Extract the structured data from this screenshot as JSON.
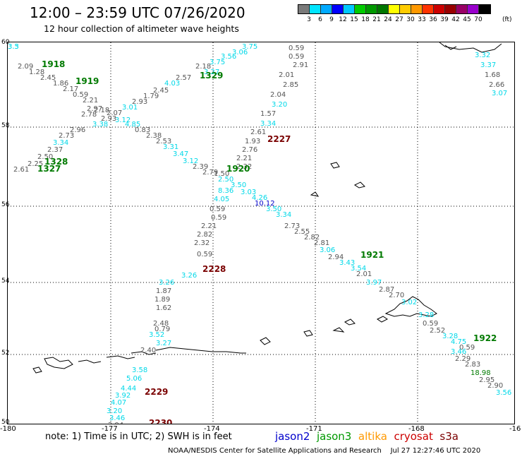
{
  "header": {
    "title": "12:00 – 23:59 UTC 07/26/2020",
    "subtitle": "12 hour collection of altimeter wave heights"
  },
  "legend": {
    "colors": [
      "#7a7a7a",
      "#00e5ff",
      "#00aaff",
      "#0000ff",
      "#00c8ff",
      "#00cc00",
      "#009900",
      "#007700",
      "#ffff00",
      "#ffcc00",
      "#ff9900",
      "#ff3300",
      "#cc0000",
      "#990000",
      "#990066",
      "#9900cc",
      "#000000"
    ],
    "ticks": [
      "3",
      "6",
      "9",
      "12",
      "15",
      "18",
      "21",
      "24",
      "27",
      "30",
      "33",
      "36",
      "39",
      "42",
      "45",
      "70"
    ],
    "units": "(ft)"
  },
  "axes": {
    "lat_labels": [
      "60",
      "58",
      "56",
      "54",
      "52",
      "50"
    ],
    "lon_labels": [
      "-180",
      "-177",
      "-174",
      "-171",
      "-168",
      "-16"
    ]
  },
  "colors": {
    "gray": "#555555",
    "cyan": "#00d8e8",
    "green": "#007a00",
    "darkred": "#7a0000",
    "blue": "#0000cc"
  },
  "map": {
    "labels": [
      {
        "t": "0.59",
        "c": "gray"
      },
      {
        "t": "0.59",
        "c": "gray"
      },
      {
        "t": "2.91",
        "c": "gray"
      },
      {
        "t": "2.01",
        "c": "gray"
      },
      {
        "t": "2.85",
        "c": "gray"
      },
      {
        "t": "2.04",
        "c": "gray"
      },
      {
        "t": "3.20",
        "c": "cyan"
      },
      {
        "t": "1.57",
        "c": "gray"
      },
      {
        "t": "3.34",
        "c": "cyan"
      },
      {
        "t": "2.61",
        "c": "gray"
      },
      {
        "t": "1.93",
        "c": "gray"
      },
      {
        "t": "2.76",
        "c": "gray"
      },
      {
        "t": "2.21",
        "c": "gray"
      },
      {
        "t": "2.32",
        "c": "gray"
      },
      {
        "t": "3.75",
        "c": "cyan"
      },
      {
        "t": "3.06",
        "c": "cyan"
      },
      {
        "t": "3.56",
        "c": "cyan"
      },
      {
        "t": "3.75",
        "c": "cyan"
      },
      {
        "t": "2.18",
        "c": "gray"
      },
      {
        "t": "3.27",
        "c": "cyan"
      },
      {
        "t": "2.57",
        "c": "gray"
      },
      {
        "t": "4.03",
        "c": "cyan"
      },
      {
        "t": "2.45",
        "c": "gray"
      },
      {
        "t": "1.79",
        "c": "gray"
      },
      {
        "t": "2.93",
        "c": "gray"
      },
      {
        "t": "3.01",
        "c": "cyan"
      },
      {
        "t": "2.18",
        "c": "gray"
      },
      {
        "t": "2.07",
        "c": "gray"
      },
      {
        "t": "2.93",
        "c": "gray"
      },
      {
        "t": "3.12",
        "c": "cyan"
      },
      {
        "t": "3.38",
        "c": "cyan"
      },
      {
        "t": "2.09",
        "c": "gray"
      },
      {
        "t": "1.28",
        "c": "gray"
      },
      {
        "t": "2.45",
        "c": "gray"
      },
      {
        "t": "1.86",
        "c": "gray"
      },
      {
        "t": "2.17",
        "c": "gray"
      },
      {
        "t": "0.59",
        "c": "gray"
      },
      {
        "t": "2.21",
        "c": "gray"
      },
      {
        "t": "2.97",
        "c": "gray"
      },
      {
        "t": "2.78",
        "c": "gray"
      },
      {
        "t": "2.96",
        "c": "gray"
      },
      {
        "t": "2.73",
        "c": "gray"
      },
      {
        "t": "3.34",
        "c": "cyan"
      },
      {
        "t": "2.37",
        "c": "gray"
      },
      {
        "t": "2.50",
        "c": "gray"
      },
      {
        "t": "2.25",
        "c": "gray"
      },
      {
        "t": "2.61",
        "c": "gray"
      },
      {
        "t": "4.85",
        "c": "cyan"
      },
      {
        "t": "0.83",
        "c": "gray"
      },
      {
        "t": "2.38",
        "c": "gray"
      },
      {
        "t": "2.53",
        "c": "gray"
      },
      {
        "t": "3.31",
        "c": "cyan"
      },
      {
        "t": "3.47",
        "c": "cyan"
      },
      {
        "t": "3.12",
        "c": "cyan"
      },
      {
        "t": "2.39",
        "c": "gray"
      },
      {
        "t": "2.79",
        "c": "gray"
      },
      {
        "t": "1.50",
        "c": "gray"
      },
      {
        "t": "2.50",
        "c": "cyan"
      },
      {
        "t": "3.50",
        "c": "cyan"
      },
      {
        "t": "8.36",
        "c": "cyan"
      },
      {
        "t": "3.03",
        "c": "cyan"
      },
      {
        "t": "4.26",
        "c": "cyan"
      },
      {
        "t": "4.05",
        "c": "cyan"
      },
      {
        "t": "10.12",
        "c": "blue"
      },
      {
        "t": "0.59",
        "c": "gray"
      },
      {
        "t": "3.50",
        "c": "cyan"
      },
      {
        "t": "0.59",
        "c": "gray"
      },
      {
        "t": "3.34",
        "c": "cyan"
      },
      {
        "t": "2.73",
        "c": "gray"
      },
      {
        "t": "2.21",
        "c": "gray"
      },
      {
        "t": "2.55",
        "c": "gray"
      },
      {
        "t": "2.82",
        "c": "gray"
      },
      {
        "t": "2.82",
        "c": "gray"
      },
      {
        "t": "2.81",
        "c": "gray"
      },
      {
        "t": "2.32",
        "c": "gray"
      },
      {
        "t": "3.06",
        "c": "cyan"
      },
      {
        "t": "0.59",
        "c": "gray"
      },
      {
        "t": "2.94",
        "c": "gray"
      },
      {
        "t": "3.43",
        "c": "cyan"
      },
      {
        "t": "3.26",
        "c": "cyan"
      },
      {
        "t": "3.54",
        "c": "cyan"
      },
      {
        "t": "2.01",
        "c": "gray"
      },
      {
        "t": "3.97",
        "c": "cyan"
      },
      {
        "t": "3.26",
        "c": "cyan"
      },
      {
        "t": "2.87",
        "c": "gray"
      },
      {
        "t": "1.87",
        "c": "gray"
      },
      {
        "t": "2.70",
        "c": "gray"
      },
      {
        "t": "1.89",
        "c": "gray"
      },
      {
        "t": "3.02",
        "c": "cyan"
      },
      {
        "t": "1.62",
        "c": "gray"
      },
      {
        "t": "2.48",
        "c": "gray"
      },
      {
        "t": "0.79",
        "c": "gray"
      },
      {
        "t": "3.28",
        "c": "cyan"
      },
      {
        "t": "0.59",
        "c": "gray"
      },
      {
        "t": "2.52",
        "c": "gray"
      },
      {
        "t": "3.28",
        "c": "cyan"
      },
      {
        "t": "3.52",
        "c": "cyan"
      },
      {
        "t": "4.75",
        "c": "cyan"
      },
      {
        "t": "0.59",
        "c": "gray"
      },
      {
        "t": "3.27",
        "c": "cyan"
      },
      {
        "t": "3.46",
        "c": "cyan"
      },
      {
        "t": "2.29",
        "c": "gray"
      },
      {
        "t": "2.40",
        "c": "gray"
      },
      {
        "t": "2.83",
        "c": "gray"
      },
      {
        "t": "18.98",
        "c": "green"
      },
      {
        "t": "3.58",
        "c": "cyan"
      },
      {
        "t": "2.95",
        "c": "gray"
      },
      {
        "t": "5.06",
        "c": "cyan"
      },
      {
        "t": "2.90",
        "c": "gray"
      },
      {
        "t": "4.44",
        "c": "cyan"
      },
      {
        "t": "3.56",
        "c": "cyan"
      },
      {
        "t": "3.92",
        "c": "cyan"
      },
      {
        "t": "4.07",
        "c": "cyan"
      },
      {
        "t": "3.20",
        "c": "cyan"
      },
      {
        "t": "3.46",
        "c": "cyan"
      },
      {
        "t": "2.94",
        "c": "gray"
      },
      {
        "t": "3.32",
        "c": "cyan"
      },
      {
        "t": "3.37",
        "c": "cyan"
      },
      {
        "t": "1.68",
        "c": "gray"
      },
      {
        "t": "2.66",
        "c": "gray"
      },
      {
        "t": "3.07",
        "c": "cyan"
      },
      {
        "t": "3.3",
        "c": "cyan"
      },
      {
        "t": "3.5",
        "c": "cyan"
      }
    ],
    "pass_times": [
      {
        "t": "1918",
        "c": "green"
      },
      {
        "t": "1919",
        "c": "green"
      },
      {
        "t": "1329",
        "c": "green"
      },
      {
        "t": "1328",
        "c": "green"
      },
      {
        "t": "1327",
        "c": "green"
      },
      {
        "t": "2227",
        "c": "darkred"
      },
      {
        "t": "1920",
        "c": "green"
      },
      {
        "t": "2228",
        "c": "darkred"
      },
      {
        "t": "1921",
        "c": "green"
      },
      {
        "t": "1922",
        "c": "green"
      },
      {
        "t": "2229",
        "c": "darkred"
      },
      {
        "t": "2230",
        "c": "darkred"
      }
    ]
  },
  "footer": {
    "note": "note: 1) Time is in UTC; 2) SWH is in feet",
    "satellites": [
      {
        "t": "jason2",
        "color": "#0000cc"
      },
      {
        "t": "jason3",
        "color": "#009900"
      },
      {
        "t": "altika",
        "color": "#ff9900"
      },
      {
        "t": "cryosat",
        "color": "#cc0000"
      },
      {
        "t": "s3a",
        "color": "#7a0000"
      }
    ],
    "credit": "NOAA/NESDIS Center for Satellite Applications and Research    Jul 27 12:27:46 UTC 2020"
  }
}
